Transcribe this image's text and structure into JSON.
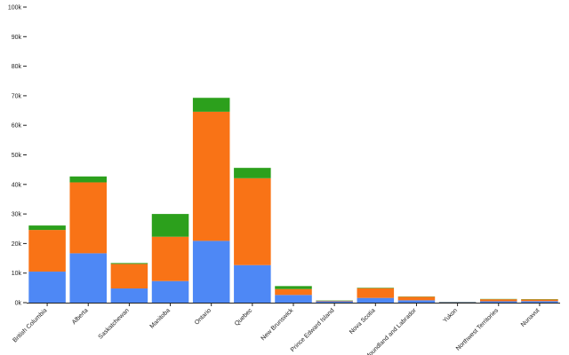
{
  "chart_data": {
    "type": "bar",
    "stacked": true,
    "categories": [
      "British Columbia",
      "Alberta",
      "Saskatchewan",
      "Manitoba",
      "Ontario",
      "Quebec",
      "New Brunswick",
      "Prince Edward Island",
      "Nova Scotia",
      "Newfoundland and Labrador",
      "Yukon",
      "Northwest Territories",
      "Nunavut"
    ],
    "series": [
      {
        "color": "#4e88f5",
        "values": [
          10500,
          16700,
          4800,
          7300,
          20900,
          12700,
          2600,
          450,
          1600,
          800,
          150,
          450,
          500
        ]
      },
      {
        "color": "#f97316",
        "values": [
          14100,
          24000,
          8300,
          15000,
          43700,
          29400,
          2000,
          200,
          3300,
          1200,
          100,
          700,
          600
        ]
      },
      {
        "color": "#2ca01c",
        "values": [
          1500,
          2000,
          300,
          7700,
          4700,
          3500,
          1000,
          100,
          150,
          80,
          50,
          100,
          100
        ]
      }
    ],
    "ylim": [
      0,
      100000
    ],
    "y_ticks": [
      0,
      10000,
      20000,
      30000,
      40000,
      50000,
      60000,
      70000,
      80000,
      90000,
      100000
    ],
    "y_tick_labels": [
      "0k",
      "10k",
      "20k",
      "30k",
      "40k",
      "50k",
      "60k",
      "70k",
      "80k",
      "90k",
      "100k"
    ],
    "grid": false,
    "legend": "none"
  }
}
